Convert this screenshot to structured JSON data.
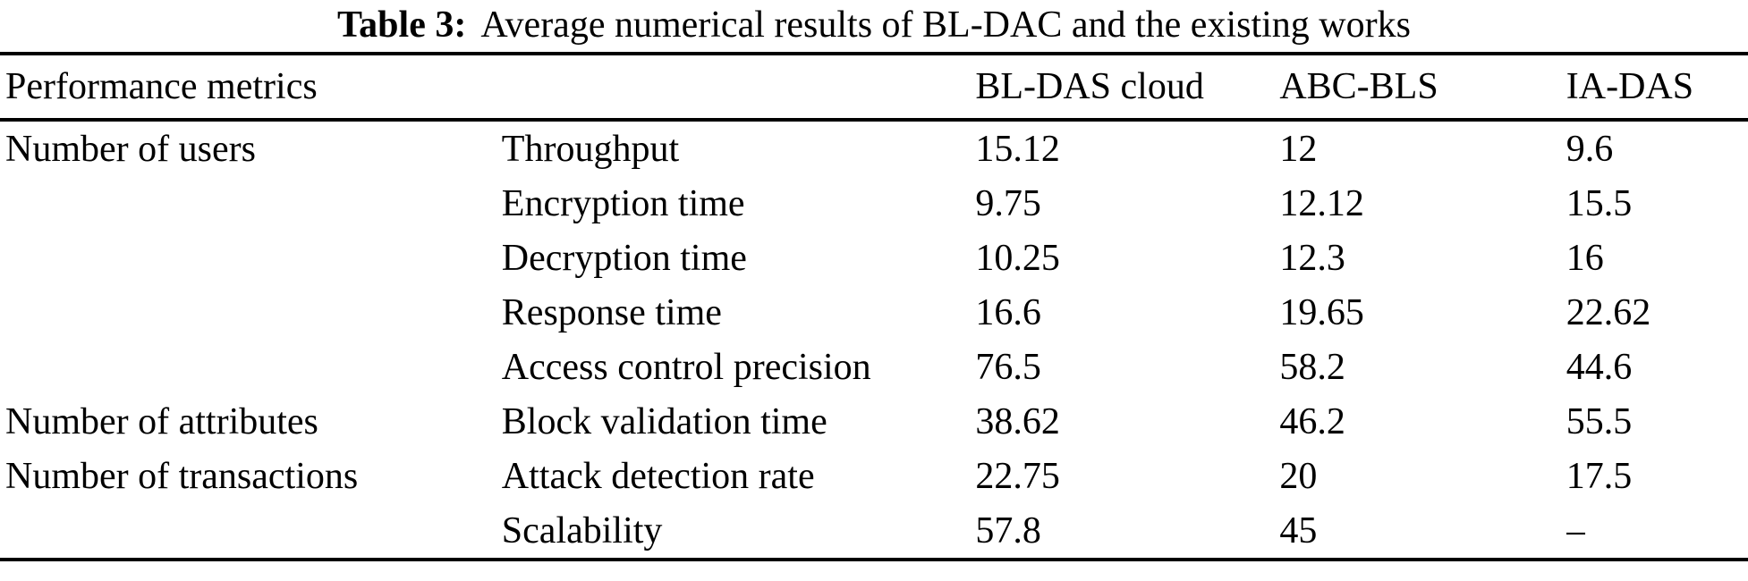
{
  "caption": {
    "label": "Table 3:",
    "text": "Average numerical results of BL-DAC and the existing works"
  },
  "table": {
    "header": {
      "performance_metrics": "Performance metrics",
      "bl_das_cloud": "BL-DAS cloud",
      "abc_bls": "ABC-BLS",
      "ia_das": "IA-DAS"
    },
    "rows": [
      {
        "group": "Number of users",
        "metric": "Throughput",
        "bl_das_cloud": "15.12",
        "abc_bls": "12",
        "ia_das": "9.6"
      },
      {
        "group": "",
        "metric": "Encryption time",
        "bl_das_cloud": "9.75",
        "abc_bls": "12.12",
        "ia_das": "15.5"
      },
      {
        "group": "",
        "metric": "Decryption time",
        "bl_das_cloud": "10.25",
        "abc_bls": "12.3",
        "ia_das": "16"
      },
      {
        "group": "",
        "metric": "Response time",
        "bl_das_cloud": "16.6",
        "abc_bls": "19.65",
        "ia_das": "22.62"
      },
      {
        "group": "",
        "metric": "Access control precision",
        "bl_das_cloud": "76.5",
        "abc_bls": "58.2",
        "ia_das": "44.6"
      },
      {
        "group": "Number of attributes",
        "metric": "Block validation time",
        "bl_das_cloud": "38.62",
        "abc_bls": "46.2",
        "ia_das": "55.5"
      },
      {
        "group": "Number of transactions",
        "metric": "Attack detection rate",
        "bl_das_cloud": "22.75",
        "abc_bls": "20",
        "ia_das": "17.5"
      },
      {
        "group": "",
        "metric": "Scalability",
        "bl_das_cloud": "57.8",
        "abc_bls": "45",
        "ia_das": "–"
      }
    ]
  }
}
